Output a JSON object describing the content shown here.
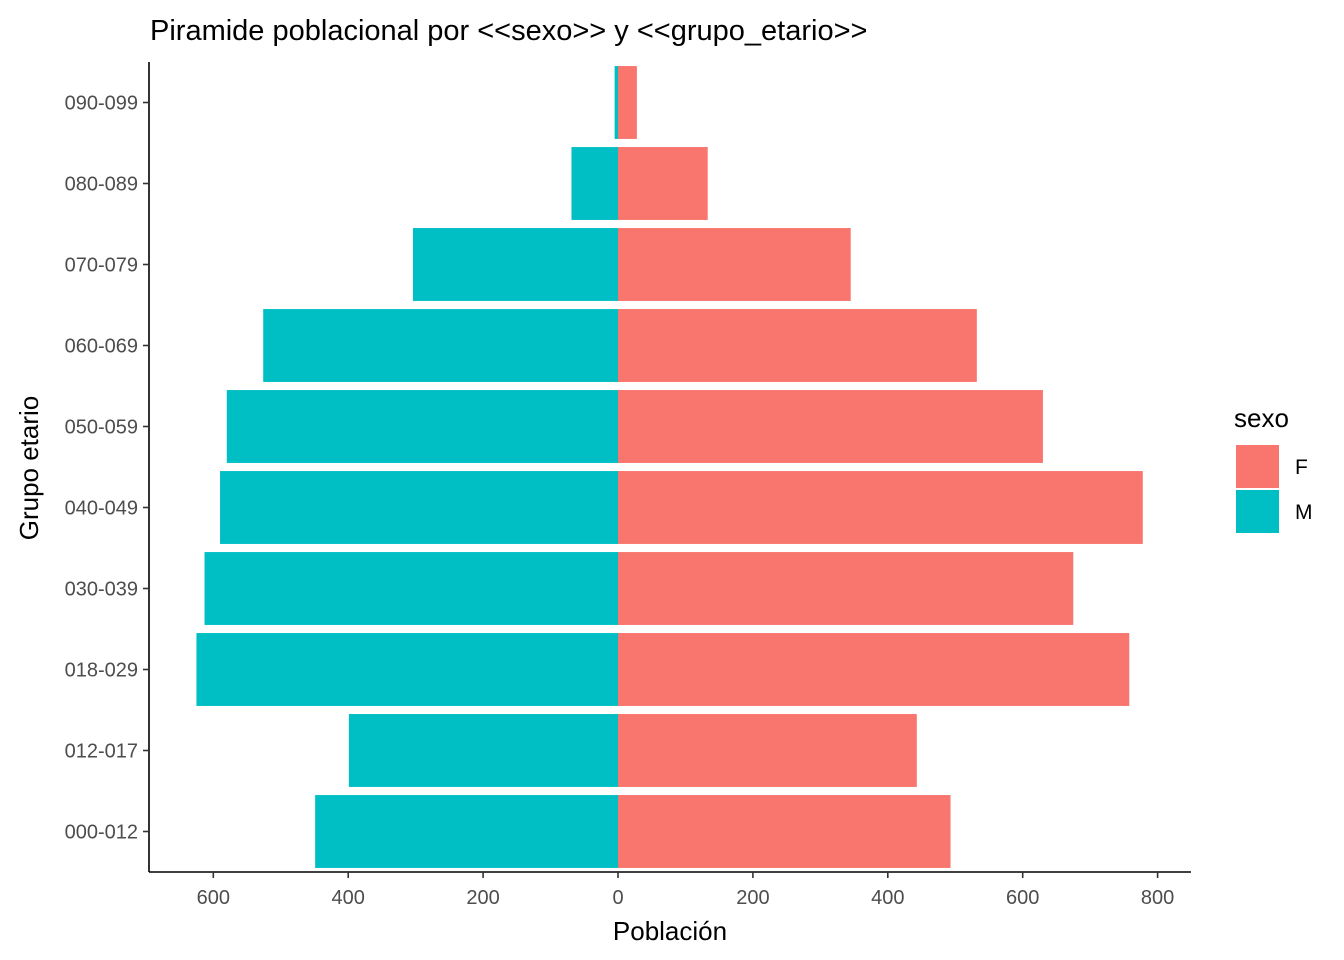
{
  "chart_data": {
    "type": "bar",
    "orientation": "horizontal-pyramid",
    "title": "Piramide poblacional por <<sexo>> y <<grupo_etario>>",
    "xlabel": "Población",
    "ylabel": "Grupo etario",
    "xlim": [
      -700,
      800
    ],
    "x_ticks": [
      -600,
      -400,
      -200,
      0,
      200,
      400,
      600,
      800
    ],
    "x_tick_labels": [
      "600",
      "400",
      "200",
      "0",
      "200",
      "400",
      "600",
      "800"
    ],
    "categories": [
      "000-012",
      "012-017",
      "018-029",
      "030-039",
      "040-049",
      "050-059",
      "060-069",
      "070-079",
      "080-089",
      "090-099"
    ],
    "series": [
      {
        "name": "F",
        "color": "#F8766D",
        "values": [
          493,
          443,
          758,
          675,
          778,
          630,
          532,
          345,
          133,
          28
        ]
      },
      {
        "name": "M",
        "color": "#00BFC4",
        "values": [
          -449,
          -399,
          -625,
          -613,
          -590,
          -580,
          -526,
          -304,
          -69,
          -5
        ]
      }
    ],
    "legend": {
      "title": "sexo",
      "placement": "right",
      "entries": [
        "F",
        "M"
      ]
    },
    "grid": false
  }
}
